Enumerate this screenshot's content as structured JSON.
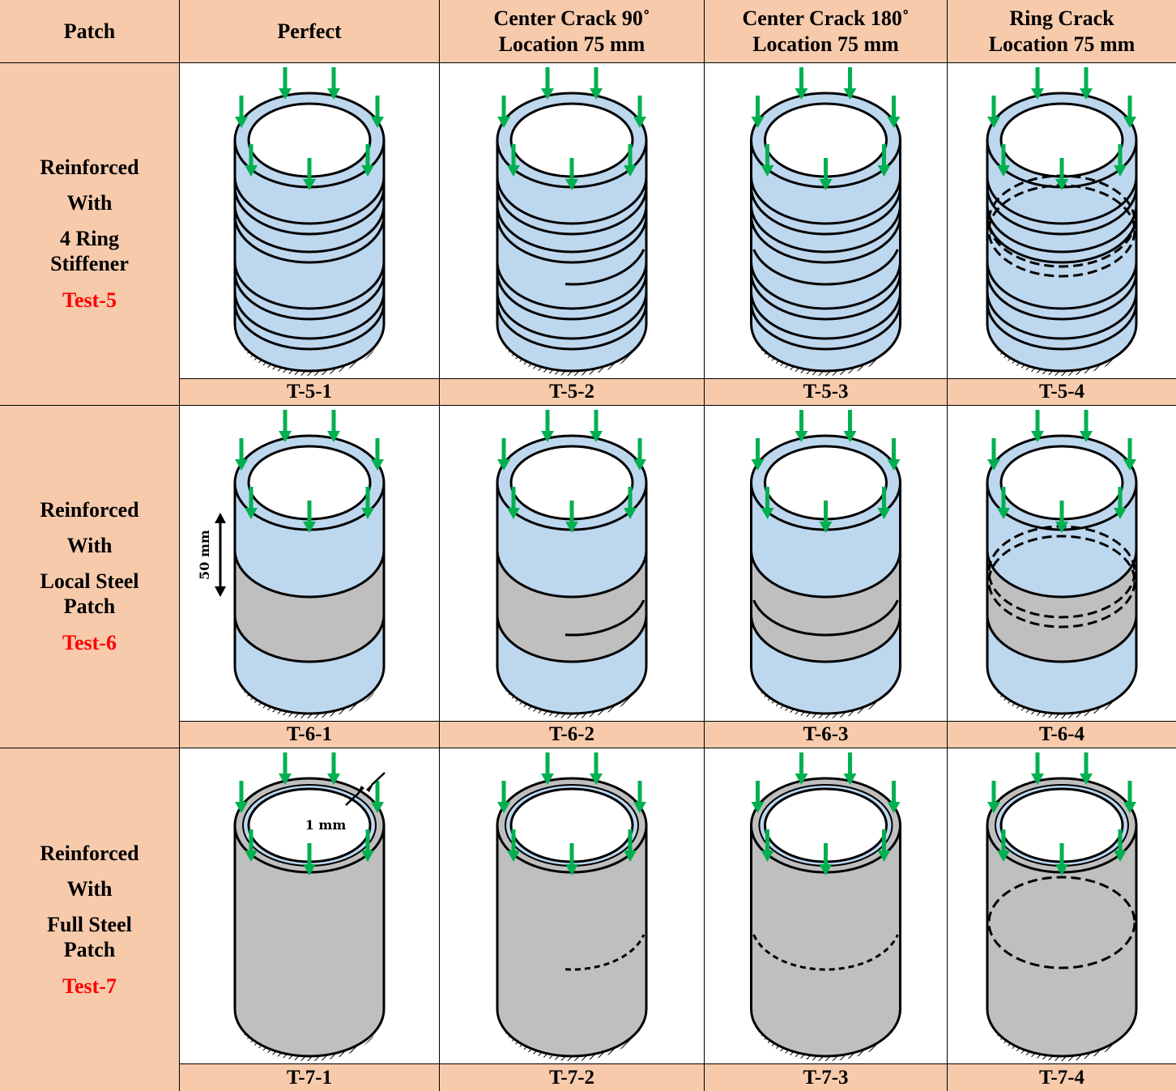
{
  "header": [
    [
      "Patch"
    ],
    [
      "Perfect"
    ],
    [
      "Center Crack 90˚",
      "Location 75 mm"
    ],
    [
      "Center Crack 180˚",
      "Location 75 mm"
    ],
    [
      "Ring Crack",
      "Location 75 mm"
    ]
  ],
  "rows": [
    {
      "label_lines": [
        "Reinforced",
        "With",
        "4 Ring",
        "Stiffener"
      ],
      "test": "Test-5",
      "cases": [
        "T-5-1",
        "T-5-2",
        "T-5-3",
        "T-5-4"
      ]
    },
    {
      "label_lines": [
        "Reinforced",
        "With",
        "Local Steel",
        "Patch"
      ],
      "test": "Test-6",
      "cases": [
        "T-6-1",
        "T-6-2",
        "T-6-3",
        "T-6-4"
      ],
      "annotation": "50 mm"
    },
    {
      "label_lines": [
        "Reinforced",
        "With",
        "Full Steel",
        "Patch"
      ],
      "test": "Test-7",
      "cases": [
        "T-7-1",
        "T-7-2",
        "T-7-3",
        "T-7-4"
      ],
      "annotation": "1 mm"
    }
  ]
}
